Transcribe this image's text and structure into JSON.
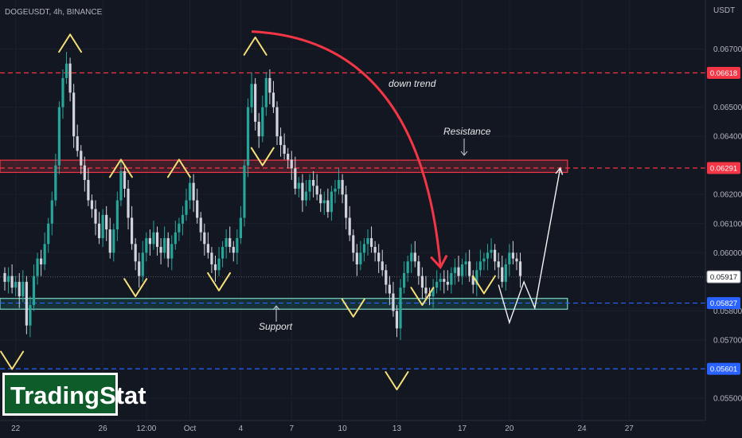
{
  "header": {
    "symbol_line": "DOGEUSDT, 4h, BINANCE",
    "currency": "USDT"
  },
  "logo": {
    "text": "TradingStat"
  },
  "annotations": {
    "down_trend": "down trend",
    "resistance": "Resistance",
    "support": "Support"
  },
  "colors": {
    "background": "#131722",
    "bull": "#26a69a",
    "bear": "#d1d4dc",
    "resistance_line": "#f23645",
    "support_line": "#2962ff",
    "marker": "#f7e07a",
    "arrow": "#f23645",
    "logo_bg": "#0e5c2a"
  },
  "chart_data": {
    "type": "candlestick",
    "title": "DOGEUSDT, 4h, BINANCE",
    "ylabel": "USDT",
    "ylim": [
      0.0544,
      0.0683
    ],
    "x_ticks": [
      {
        "i": 3,
        "label": "22"
      },
      {
        "i": 27,
        "label": "26"
      },
      {
        "i": 39,
        "label": "12:00"
      },
      {
        "i": 51,
        "label": "Oct"
      },
      {
        "i": 65,
        "label": "4"
      },
      {
        "i": 79,
        "label": "7"
      },
      {
        "i": 93,
        "label": "10"
      },
      {
        "i": 108,
        "label": "13"
      },
      {
        "i": 126,
        "label": "17"
      },
      {
        "i": 139,
        "label": "20"
      },
      {
        "i": 159,
        "label": "24"
      },
      {
        "i": 172,
        "label": "27"
      }
    ],
    "y_ticks": [
      {
        "value": 0.067,
        "label": "0.06700"
      },
      {
        "value": 0.065,
        "label": "0.06500"
      },
      {
        "value": 0.064,
        "label": "0.06400"
      },
      {
        "value": 0.062,
        "label": "0.06200"
      },
      {
        "value": 0.061,
        "label": "0.06100"
      },
      {
        "value": 0.06,
        "label": "0.06000"
      },
      {
        "value": 0.058,
        "label": "0.05800"
      },
      {
        "value": 0.057,
        "label": "0.05700"
      },
      {
        "value": 0.055,
        "label": "0.05500"
      }
    ],
    "price_tags": [
      {
        "value": 0.06618,
        "label": "0.06618",
        "style": "resistance"
      },
      {
        "value": 0.06291,
        "label": "0.06291",
        "style": "resistance"
      },
      {
        "value": 0.05917,
        "label": "0.05917",
        "style": "current"
      },
      {
        "value": 0.05827,
        "label": "0.05827",
        "style": "support"
      },
      {
        "value": 0.05601,
        "label": "0.05601",
        "style": "support"
      }
    ],
    "hlines": [
      {
        "value": 0.06618,
        "color": "resistance"
      },
      {
        "value": 0.06291,
        "color": "resistance"
      },
      {
        "value": 0.05827,
        "color": "support"
      },
      {
        "value": 0.05601,
        "color": "support"
      }
    ],
    "zones": [
      {
        "name": "Resistance",
        "from": 0.06276,
        "to": 0.06318,
        "i_end": 155
      },
      {
        "name": "Support",
        "from": 0.05806,
        "to": 0.05843,
        "i_end": 155
      }
    ],
    "closes": [
      0.059,
      0.0592,
      0.0588,
      0.059,
      0.0585,
      0.059,
      0.0575,
      0.0582,
      0.0592,
      0.0598,
      0.0596,
      0.0603,
      0.061,
      0.0618,
      0.063,
      0.065,
      0.066,
      0.0665,
      0.0655,
      0.064,
      0.0635,
      0.063,
      0.0625,
      0.0618,
      0.0615,
      0.061,
      0.0605,
      0.0613,
      0.0608,
      0.06,
      0.0608,
      0.0618,
      0.0628,
      0.0622,
      0.0612,
      0.0603,
      0.0597,
      0.0592,
      0.06,
      0.0605,
      0.0603,
      0.0607,
      0.0602,
      0.06,
      0.0605,
      0.0598,
      0.0603,
      0.0607,
      0.061,
      0.0613,
      0.0618,
      0.0624,
      0.0618,
      0.0612,
      0.0607,
      0.0603,
      0.06,
      0.0596,
      0.0594,
      0.0598,
      0.0602,
      0.0605,
      0.0602,
      0.06,
      0.0605,
      0.0612,
      0.063,
      0.065,
      0.0658,
      0.0645,
      0.064,
      0.065,
      0.066,
      0.0655,
      0.065,
      0.064,
      0.0637,
      0.0634,
      0.0632,
      0.0629,
      0.0622,
      0.0624,
      0.0618,
      0.0621,
      0.0625,
      0.0623,
      0.062,
      0.0617,
      0.0618,
      0.0614,
      0.0621,
      0.0622,
      0.0625,
      0.062,
      0.0612,
      0.0606,
      0.06,
      0.0596,
      0.06,
      0.0603,
      0.0605,
      0.0602,
      0.06,
      0.0597,
      0.0594,
      0.0589,
      0.0586,
      0.058,
      0.0574,
      0.0588,
      0.0593,
      0.0597,
      0.06,
      0.0597,
      0.0592,
      0.0588,
      0.0586,
      0.0585,
      0.0588,
      0.059,
      0.0591,
      0.059,
      0.0589,
      0.0593,
      0.0595,
      0.0592,
      0.0596,
      0.0597,
      0.0592,
      0.0589,
      0.0594,
      0.0597,
      0.0598,
      0.06,
      0.0601,
      0.0597,
      0.0595,
      0.059,
      0.0596,
      0.06,
      0.0598,
      0.0597,
      0.0592
    ],
    "projection": [
      {
        "i": 136,
        "y": 0.0589
      },
      {
        "i": 139,
        "y": 0.0576
      },
      {
        "i": 143,
        "y": 0.059
      },
      {
        "i": 146,
        "y": 0.0581
      },
      {
        "i": 153,
        "y": 0.06291
      }
    ],
    "trend_arrow": {
      "from": {
        "i": 68,
        "y": 0.0676
      },
      "to": {
        "i": 120,
        "y": 0.0595
      }
    },
    "markers": [
      {
        "i": 2,
        "y": 0.056,
        "dir": "down"
      },
      {
        "i": 18,
        "y": 0.0675,
        "dir": "up"
      },
      {
        "i": 32,
        "y": 0.0632,
        "dir": "up"
      },
      {
        "i": 36,
        "y": 0.0585,
        "dir": "down"
      },
      {
        "i": 48,
        "y": 0.0632,
        "dir": "up"
      },
      {
        "i": 59,
        "y": 0.0587,
        "dir": "down"
      },
      {
        "i": 69,
        "y": 0.0674,
        "dir": "up"
      },
      {
        "i": 71,
        "y": 0.063,
        "dir": "down"
      },
      {
        "i": 96,
        "y": 0.0578,
        "dir": "down"
      },
      {
        "i": 108,
        "y": 0.0553,
        "dir": "down"
      },
      {
        "i": 115,
        "y": 0.0582,
        "dir": "down"
      },
      {
        "i": 132,
        "y": 0.0586,
        "dir": "down"
      }
    ]
  }
}
